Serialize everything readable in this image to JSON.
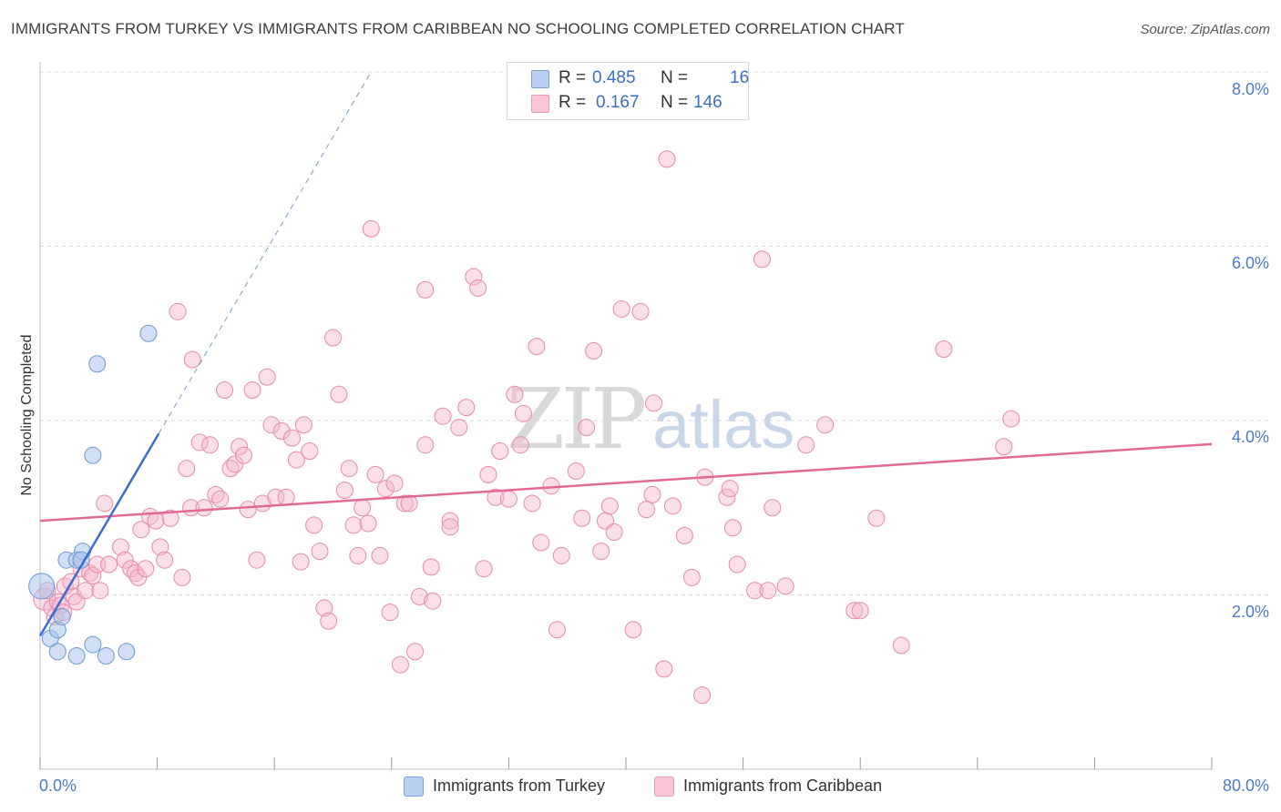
{
  "title": "IMMIGRANTS FROM TURKEY VS IMMIGRANTS FROM CARIBBEAN NO SCHOOLING COMPLETED CORRELATION CHART",
  "source": "Source: ZipAtlas.com",
  "watermark": {
    "zip": "ZIP",
    "atlas": "atlas"
  },
  "legend": {
    "r_label": "R =",
    "n_label": "N =",
    "rows": [
      {
        "r": "0.485",
        "n": "16"
      },
      {
        "r": "0.167",
        "n": "146"
      }
    ]
  },
  "colors": {
    "turkey_fill": "#a9c4ea",
    "turkey_stroke": "#6d98d4",
    "turkey_line": "#3a6fcf",
    "carib_fill": "#f5b8cc",
    "carib_stroke": "#e88aa8",
    "carib_line": "#e06a95",
    "grid": "#d9d9d9",
    "tick_text": "#4a7bc8"
  },
  "chart_data": {
    "type": "scatter",
    "title": "IMMIGRANTS FROM TURKEY VS IMMIGRANTS FROM CARIBBEAN NO SCHOOLING COMPLETED CORRELATION CHART",
    "xlabel": "",
    "ylabel": "No Schooling Completed",
    "xlim": [
      0,
      80
    ],
    "ylim": [
      0,
      8.2
    ],
    "x_tick_labels": [
      "0.0%",
      "80.0%"
    ],
    "y_ticks": [
      2,
      4,
      6,
      8
    ],
    "y_tick_labels": [
      "2.0%",
      "4.0%",
      "6.0%",
      "8.0%"
    ],
    "grid": "horizontal dashed",
    "legend_position": "top-center",
    "series": [
      {
        "name": "Immigrants from Turkey",
        "r": 0.485,
        "n": 16,
        "trend": {
          "x0": 0.0,
          "y0": 1.53,
          "x1": 8.1,
          "y1": 3.85,
          "dashed_to": [
            22.6,
            8.0
          ]
        },
        "points": [
          [
            0.1,
            2.1,
            14
          ],
          [
            0.7,
            1.5,
            9
          ],
          [
            1.2,
            1.6,
            9
          ],
          [
            1.2,
            1.35,
            9
          ],
          [
            1.5,
            1.75,
            9
          ],
          [
            1.8,
            2.4,
            9
          ],
          [
            2.5,
            2.4,
            9
          ],
          [
            2.5,
            1.3,
            9
          ],
          [
            2.9,
            2.5,
            9
          ],
          [
            3.6,
            3.6,
            9
          ],
          [
            3.6,
            1.43,
            9
          ],
          [
            3.9,
            4.65,
            9
          ],
          [
            4.5,
            1.3,
            9
          ],
          [
            5.9,
            1.35,
            9
          ],
          [
            7.4,
            5.0,
            9
          ],
          [
            2.8,
            2.4,
            9
          ]
        ]
      },
      {
        "name": "Immigrants from Caribbean",
        "r": 0.167,
        "n": 146,
        "trend": {
          "x0": 0.0,
          "y0": 2.85,
          "x1": 80.0,
          "y1": 3.73
        },
        "points": [
          [
            0.3,
            1.95,
            12
          ],
          [
            0.5,
            2.05,
            9
          ],
          [
            0.8,
            1.85,
            9
          ],
          [
            1.0,
            1.75,
            9
          ],
          [
            1.2,
            1.92,
            9
          ],
          [
            1.4,
            1.88,
            9
          ],
          [
            1.6,
            1.8,
            9
          ],
          [
            1.7,
            2.1,
            9
          ],
          [
            2.1,
            2.15,
            9
          ],
          [
            2.3,
            1.98,
            9
          ],
          [
            2.5,
            1.92,
            9
          ],
          [
            2.8,
            2.3,
            9
          ],
          [
            3.1,
            2.05,
            9
          ],
          [
            3.4,
            2.25,
            9
          ],
          [
            3.6,
            2.22,
            9
          ],
          [
            3.9,
            2.35,
            9
          ],
          [
            4.1,
            2.05,
            9
          ],
          [
            4.4,
            3.05,
            9
          ],
          [
            4.7,
            2.35,
            9
          ],
          [
            5.5,
            2.55,
            9
          ],
          [
            5.8,
            2.4,
            9
          ],
          [
            6.2,
            2.3,
            9
          ],
          [
            6.5,
            2.25,
            9
          ],
          [
            6.7,
            2.2,
            9
          ],
          [
            6.9,
            2.75,
            9
          ],
          [
            7.2,
            2.3,
            9
          ],
          [
            7.5,
            2.9,
            9
          ],
          [
            7.9,
            2.85,
            9
          ],
          [
            8.2,
            2.55,
            9
          ],
          [
            8.5,
            2.4,
            9
          ],
          [
            8.9,
            2.88,
            9
          ],
          [
            9.4,
            5.25,
            9
          ],
          [
            9.7,
            2.2,
            9
          ],
          [
            10.0,
            3.45,
            9
          ],
          [
            10.3,
            3.0,
            9
          ],
          [
            10.4,
            4.7,
            9
          ],
          [
            10.9,
            3.75,
            9
          ],
          [
            11.2,
            3.0,
            9
          ],
          [
            11.6,
            3.72,
            9
          ],
          [
            12.0,
            3.15,
            9
          ],
          [
            12.3,
            3.1,
            9
          ],
          [
            12.6,
            4.35,
            9
          ],
          [
            13.0,
            3.45,
            9
          ],
          [
            13.3,
            3.5,
            9
          ],
          [
            13.6,
            3.7,
            9
          ],
          [
            13.9,
            3.6,
            9
          ],
          [
            14.2,
            2.98,
            9
          ],
          [
            14.5,
            4.35,
            9
          ],
          [
            14.8,
            2.4,
            9
          ],
          [
            15.2,
            3.05,
            9
          ],
          [
            15.5,
            4.5,
            9
          ],
          [
            15.8,
            3.95,
            9
          ],
          [
            16.1,
            3.12,
            9
          ],
          [
            16.5,
            3.88,
            9
          ],
          [
            16.8,
            3.12,
            9
          ],
          [
            17.2,
            3.8,
            9
          ],
          [
            17.5,
            3.55,
            9
          ],
          [
            17.8,
            2.38,
            9
          ],
          [
            18.0,
            3.95,
            9
          ],
          [
            18.4,
            3.65,
            9
          ],
          [
            18.7,
            2.8,
            9
          ],
          [
            19.1,
            2.5,
            9
          ],
          [
            19.4,
            1.85,
            9
          ],
          [
            19.7,
            1.7,
            9
          ],
          [
            20.0,
            4.95,
            9
          ],
          [
            20.4,
            4.3,
            9
          ],
          [
            20.8,
            3.2,
            9
          ],
          [
            21.1,
            3.45,
            9
          ],
          [
            21.4,
            2.8,
            9
          ],
          [
            21.7,
            2.45,
            9
          ],
          [
            22.0,
            3.0,
            9
          ],
          [
            22.4,
            2.82,
            9
          ],
          [
            22.6,
            6.2,
            9
          ],
          [
            22.9,
            3.38,
            9
          ],
          [
            23.2,
            2.45,
            9
          ],
          [
            23.6,
            3.22,
            9
          ],
          [
            23.9,
            1.8,
            9
          ],
          [
            24.2,
            3.28,
            9
          ],
          [
            24.6,
            1.2,
            9
          ],
          [
            24.9,
            3.05,
            9
          ],
          [
            25.2,
            3.05,
            9
          ],
          [
            25.6,
            1.35,
            9
          ],
          [
            25.9,
            1.98,
            9
          ],
          [
            26.3,
            3.72,
            9
          ],
          [
            26.3,
            5.5,
            9
          ],
          [
            26.7,
            2.32,
            9
          ],
          [
            26.8,
            1.93,
            9
          ],
          [
            27.5,
            4.05,
            9
          ],
          [
            28.0,
            2.85,
            9
          ],
          [
            28.0,
            2.78,
            9
          ],
          [
            28.6,
            3.92,
            9
          ],
          [
            29.1,
            4.15,
            9
          ],
          [
            29.6,
            5.65,
            9
          ],
          [
            29.9,
            5.52,
            9
          ],
          [
            30.3,
            2.3,
            9
          ],
          [
            30.6,
            3.38,
            9
          ],
          [
            31.1,
            3.12,
            9
          ],
          [
            31.4,
            3.65,
            9
          ],
          [
            32.0,
            3.1,
            9
          ],
          [
            32.4,
            4.3,
            9
          ],
          [
            32.8,
            3.72,
            9
          ],
          [
            33.0,
            4.08,
            9
          ],
          [
            33.6,
            3.05,
            9
          ],
          [
            33.9,
            4.85,
            9
          ],
          [
            34.2,
            2.6,
            9
          ],
          [
            34.9,
            3.25,
            9
          ],
          [
            35.3,
            1.6,
            9
          ],
          [
            35.6,
            2.45,
            9
          ],
          [
            36.6,
            3.42,
            9
          ],
          [
            37.0,
            2.88,
            9
          ],
          [
            37.3,
            3.92,
            9
          ],
          [
            37.8,
            4.8,
            9
          ],
          [
            38.3,
            2.5,
            9
          ],
          [
            38.6,
            2.85,
            9
          ],
          [
            38.9,
            3.02,
            9
          ],
          [
            39.2,
            2.72,
            9
          ],
          [
            39.7,
            5.28,
            9
          ],
          [
            40.5,
            1.6,
            9
          ],
          [
            41.0,
            5.25,
            9
          ],
          [
            41.4,
            2.98,
            9
          ],
          [
            41.8,
            3.15,
            9
          ],
          [
            41.9,
            4.2,
            9
          ],
          [
            42.6,
            1.15,
            9
          ],
          [
            42.8,
            7.0,
            9
          ],
          [
            43.2,
            3.02,
            9
          ],
          [
            44.0,
            2.68,
            9
          ],
          [
            44.5,
            2.2,
            9
          ],
          [
            45.2,
            0.85,
            9
          ],
          [
            45.4,
            3.35,
            9
          ],
          [
            46.9,
            3.12,
            9
          ],
          [
            47.1,
            3.22,
            9
          ],
          [
            47.3,
            2.77,
            9
          ],
          [
            47.6,
            2.35,
            9
          ],
          [
            48.8,
            2.05,
            9
          ],
          [
            49.3,
            5.85,
            9
          ],
          [
            49.7,
            2.05,
            9
          ],
          [
            50.0,
            3.0,
            9
          ],
          [
            50.9,
            2.1,
            9
          ],
          [
            52.3,
            3.72,
            9
          ],
          [
            53.6,
            3.95,
            9
          ],
          [
            55.6,
            1.82,
            9
          ],
          [
            56.0,
            1.82,
            9
          ],
          [
            57.1,
            2.88,
            9
          ],
          [
            58.8,
            1.42,
            9
          ],
          [
            61.7,
            4.82,
            9
          ],
          [
            65.8,
            3.7,
            9
          ],
          [
            66.3,
            4.02,
            9
          ]
        ]
      }
    ]
  },
  "axis": {
    "y_title": "No Schooling Completed",
    "y_tick_labels": [
      "2.0%",
      "4.0%",
      "6.0%",
      "8.0%"
    ],
    "x_tick_left": "0.0%",
    "x_tick_right": "80.0%"
  },
  "bottom_legend": [
    {
      "label": "Immigrants from Turkey"
    },
    {
      "label": "Immigrants from Caribbean"
    }
  ]
}
